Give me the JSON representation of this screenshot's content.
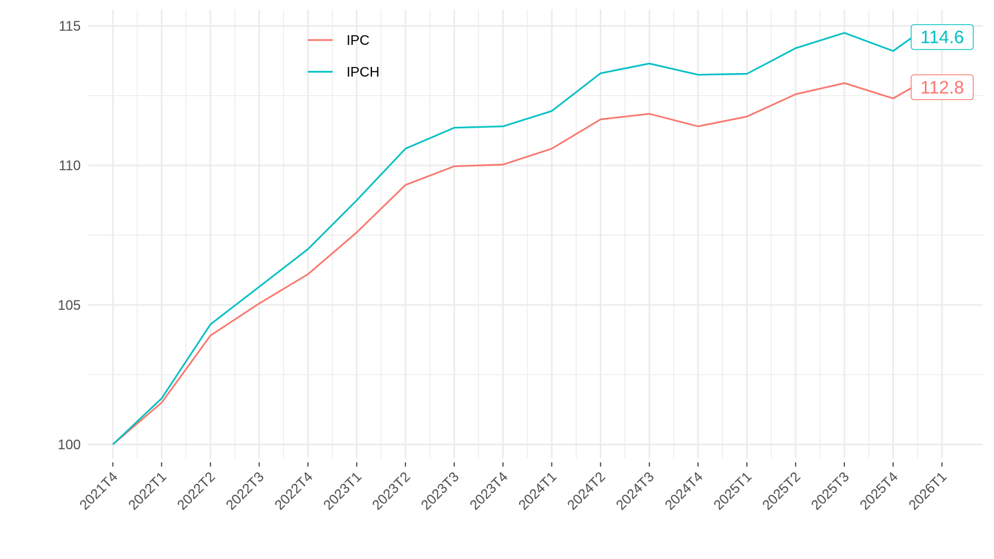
{
  "chart_data": {
    "type": "line",
    "title": "",
    "xlabel": "",
    "ylabel": "",
    "x_ticks": [
      "2021T4",
      "2022T1",
      "2022T2",
      "2022T3",
      "2022T4",
      "2023T1",
      "2023T2",
      "2023T3",
      "2023T4",
      "2024T1",
      "2024T2",
      "2024T3",
      "2024T4",
      "2025T1",
      "2025T2",
      "2025T3",
      "2025T4",
      "2026T1"
    ],
    "y_ticks": [
      100,
      105,
      110,
      115
    ],
    "y_tick_labels": [
      "100",
      "105",
      "110",
      "115"
    ],
    "ylim": [
      99.35,
      115.75
    ],
    "grid": true,
    "legend_position": "top-left (inside plot)",
    "series": [
      {
        "name": "IPC",
        "color": "#F8766D",
        "end_label": "112.8",
        "points": [
          {
            "x": 0,
            "y": 100.0
          },
          {
            "x": 1,
            "y": 101.5
          },
          {
            "x": 2,
            "y": 103.9
          },
          {
            "x": 3,
            "y": 105.05
          },
          {
            "x": 4,
            "y": 106.1
          },
          {
            "x": 5,
            "y": 107.6
          },
          {
            "x": 6,
            "y": 109.3
          },
          {
            "x": 7,
            "y": 109.97
          },
          {
            "x": 8,
            "y": 110.03
          },
          {
            "x": 9,
            "y": 110.6
          },
          {
            "x": 10,
            "y": 111.65
          },
          {
            "x": 11,
            "y": 111.85
          },
          {
            "x": 12,
            "y": 111.4
          },
          {
            "x": 13,
            "y": 111.75
          },
          {
            "x": 14,
            "y": 112.55
          },
          {
            "x": 15,
            "y": 112.95
          },
          {
            "x": 16,
            "y": 112.4
          },
          {
            "x": 16.4,
            "y": 112.8
          }
        ]
      },
      {
        "name": "IPCH",
        "color": "#00BFC4",
        "end_label": "114.6",
        "points": [
          {
            "x": 0,
            "y": 100.0
          },
          {
            "x": 1,
            "y": 101.65
          },
          {
            "x": 2,
            "y": 104.3
          },
          {
            "x": 3,
            "y": 105.65
          },
          {
            "x": 4,
            "y": 107.0
          },
          {
            "x": 5,
            "y": 108.75
          },
          {
            "x": 6,
            "y": 110.6
          },
          {
            "x": 7,
            "y": 111.35
          },
          {
            "x": 8,
            "y": 111.4
          },
          {
            "x": 9,
            "y": 111.95
          },
          {
            "x": 10,
            "y": 113.3
          },
          {
            "x": 11,
            "y": 113.65
          },
          {
            "x": 12,
            "y": 113.25
          },
          {
            "x": 13,
            "y": 113.28
          },
          {
            "x": 14,
            "y": 114.2
          },
          {
            "x": 15,
            "y": 114.75
          },
          {
            "x": 16,
            "y": 114.1
          },
          {
            "x": 16.4,
            "y": 114.6
          }
        ]
      }
    ]
  }
}
